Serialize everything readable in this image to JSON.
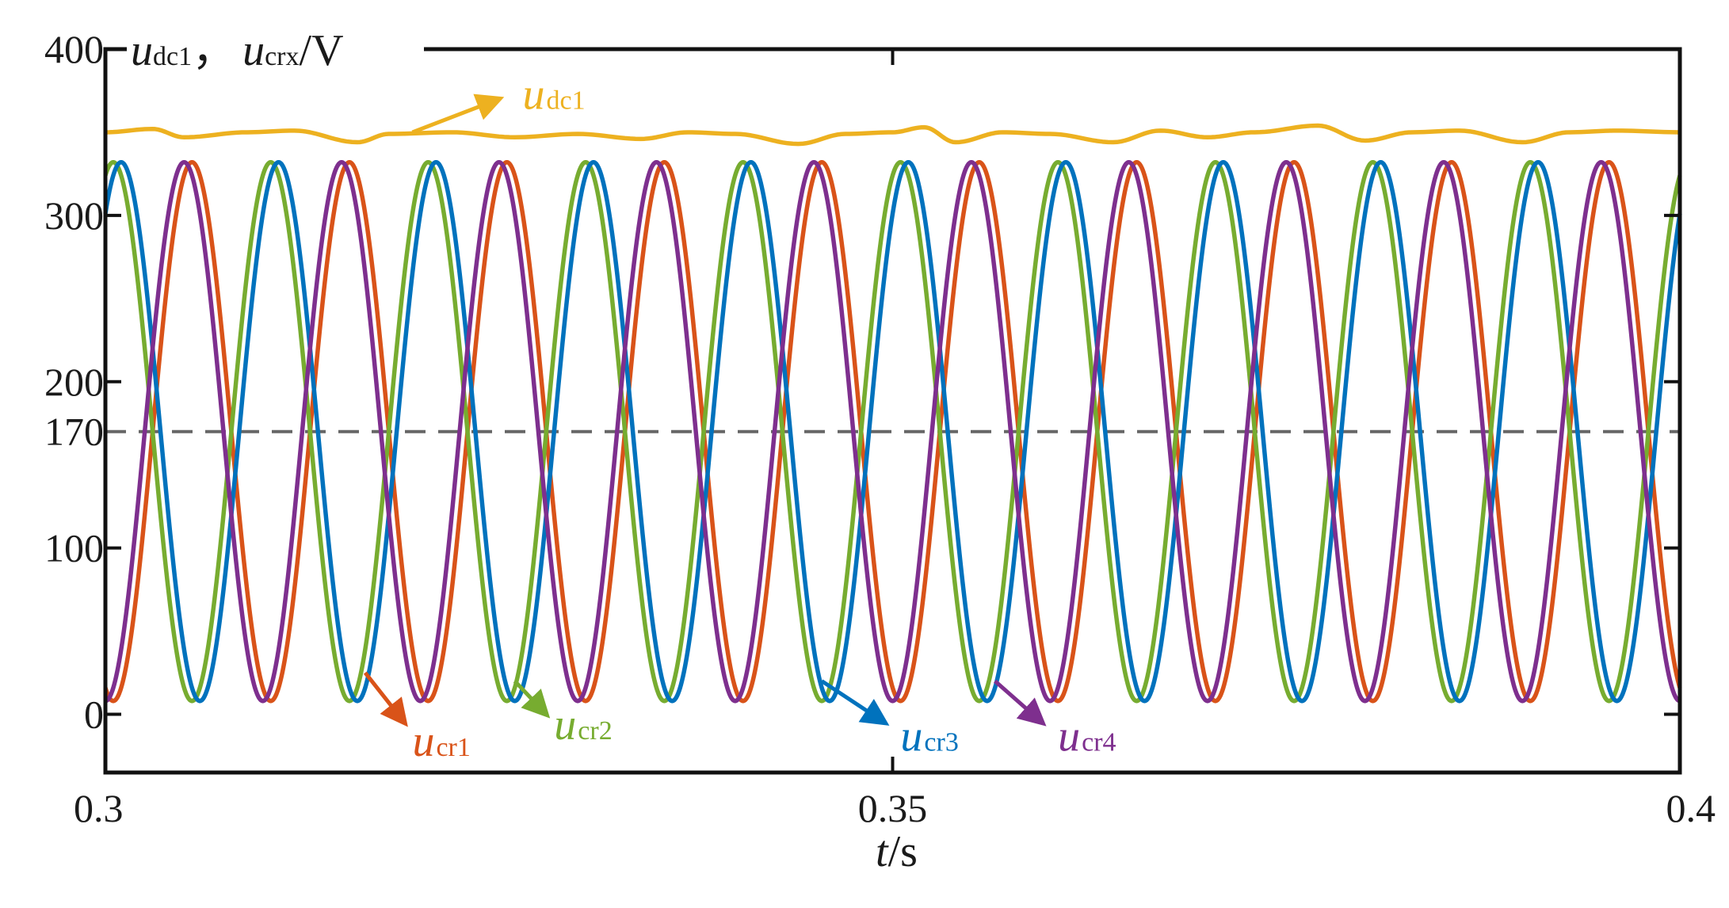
{
  "chart_data": {
    "type": "line",
    "title": "",
    "ylabel": {
      "symbol": "u",
      "sub1": "dc1",
      "sep": "，",
      "sub2": "crx",
      "unit": "/V"
    },
    "xlabel": {
      "symbol": "t",
      "unit": "/s"
    },
    "xlim": [
      0.3,
      0.4
    ],
    "ylim": [
      -35,
      400
    ],
    "xticks": [
      0.3,
      0.35,
      0.4
    ],
    "xtick_labels": [
      "0.3",
      "0.35",
      "0.4"
    ],
    "yticks": [
      0,
      100,
      200,
      300,
      400
    ],
    "ytick_labels": [
      "0",
      "100",
      "200",
      "300",
      "400"
    ],
    "reference_line": {
      "y": 170,
      "label": "170",
      "style": "dashed",
      "color": "#666666",
      "label_color": "#b03030"
    },
    "grid": false,
    "series": [
      {
        "name": "u_dc1",
        "color": "#EDB120",
        "kind": "dc",
        "x": [
          0.3,
          0.303,
          0.305,
          0.309,
          0.312,
          0.316,
          0.318,
          0.322,
          0.326,
          0.33,
          0.334,
          0.337,
          0.34,
          0.344,
          0.347,
          0.35,
          0.352,
          0.354,
          0.357,
          0.36,
          0.364,
          0.367,
          0.37,
          0.373,
          0.377,
          0.38,
          0.383,
          0.386,
          0.39,
          0.393,
          0.396,
          0.4
        ],
        "y": [
          350,
          352,
          347,
          350,
          351,
          344,
          349,
          350,
          347,
          349,
          346,
          350,
          349,
          343,
          349,
          350,
          353,
          344,
          350,
          349,
          344,
          351,
          347,
          350,
          354,
          345,
          350,
          351,
          344,
          350,
          351,
          350
        ]
      },
      {
        "name": "u_cr1",
        "color": "#D95319",
        "kind": "sine",
        "mean": 170,
        "amplitude": 162,
        "period": 0.01,
        "peak_times": [
          0.3055,
          0.3155,
          0.3255,
          0.3355,
          0.3455,
          0.3555,
          0.3655,
          0.3755,
          0.3855,
          0.3955
        ]
      },
      {
        "name": "u_cr2",
        "color": "#77AC30",
        "kind": "sine",
        "mean": 170,
        "amplitude": 162,
        "period": 0.01,
        "peak_times": [
          0.3005,
          0.3105,
          0.3205,
          0.3305,
          0.3405,
          0.3505,
          0.3605,
          0.3705,
          0.3805,
          0.3905
        ]
      },
      {
        "name": "u_cr3",
        "color": "#0072BD",
        "kind": "sine",
        "mean": 170,
        "amplitude": 162,
        "period": 0.01,
        "peak_times": [
          0.301,
          0.311,
          0.321,
          0.331,
          0.341,
          0.351,
          0.361,
          0.371,
          0.381,
          0.391
        ]
      },
      {
        "name": "u_cr4",
        "color": "#7E2F8E",
        "kind": "sine",
        "mean": 170,
        "amplitude": 162,
        "period": 0.01,
        "peak_times": [
          0.305,
          0.315,
          0.325,
          0.335,
          0.345,
          0.355,
          0.365,
          0.375,
          0.385,
          0.395
        ]
      }
    ],
    "annotations": [
      {
        "series": "u_dc1",
        "symbol": "u",
        "sub": "dc1",
        "color": "#EDB120",
        "from": [
          0.3195,
          350
        ],
        "to": [
          0.325,
          370
        ],
        "label_at": [
          0.3265,
          364
        ]
      },
      {
        "series": "u_cr1",
        "symbol": "u",
        "sub": "cr1",
        "color": "#D95319",
        "from": [
          0.3165,
          25
        ],
        "to": [
          0.319,
          -5
        ],
        "label_at": [
          0.3195,
          -25
        ]
      },
      {
        "series": "u_cr2",
        "symbol": "u",
        "sub": "cr2",
        "color": "#77AC30",
        "from": [
          0.326,
          20
        ],
        "to": [
          0.328,
          0
        ],
        "label_at": [
          0.3285,
          -15
        ]
      },
      {
        "series": "u_cr3",
        "symbol": "u",
        "sub": "cr3",
        "color": "#0072BD",
        "from": [
          0.3455,
          20
        ],
        "to": [
          0.3495,
          -5
        ],
        "label_at": [
          0.3505,
          -22
        ]
      },
      {
        "series": "u_cr4",
        "symbol": "u",
        "sub": "cr4",
        "color": "#7E2F8E",
        "from": [
          0.3565,
          20
        ],
        "to": [
          0.3595,
          -5
        ],
        "label_at": [
          0.3605,
          -22
        ]
      }
    ]
  }
}
